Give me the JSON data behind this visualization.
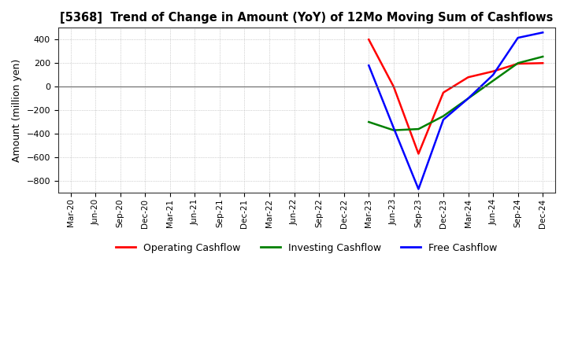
{
  "title": "[5368]  Trend of Change in Amount (YoY) of 12Mo Moving Sum of Cashflows",
  "ylabel": "Amount (million yen)",
  "ylim": [
    -900,
    500
  ],
  "yticks": [
    400,
    200,
    0,
    -200,
    -400,
    -600,
    -800
  ],
  "background_color": "#ffffff",
  "grid_color": "#aaaaaa",
  "x_labels": [
    "Mar-20",
    "Jun-20",
    "Sep-20",
    "Dec-20",
    "Mar-21",
    "Jun-21",
    "Sep-21",
    "Dec-21",
    "Mar-22",
    "Jun-22",
    "Sep-22",
    "Dec-22",
    "Mar-23",
    "Jun-23",
    "Sep-23",
    "Dec-23",
    "Mar-24",
    "Jun-24",
    "Sep-24",
    "Dec-24"
  ],
  "operating": [
    null,
    null,
    null,
    null,
    null,
    null,
    null,
    null,
    null,
    null,
    null,
    null,
    400,
    0,
    -570,
    -50,
    80,
    130,
    195,
    200
  ],
  "investing": [
    null,
    null,
    null,
    null,
    null,
    null,
    null,
    null,
    null,
    null,
    null,
    null,
    -300,
    -370,
    -360,
    -250,
    -100,
    50,
    200,
    255
  ],
  "free": [
    null,
    null,
    null,
    null,
    null,
    null,
    null,
    null,
    null,
    null,
    null,
    null,
    180,
    -350,
    -870,
    -280,
    -100,
    100,
    415,
    460
  ],
  "line_colors": {
    "operating": "#ff0000",
    "investing": "#008000",
    "free": "#0000ff"
  },
  "line_width": 1.8,
  "legend_labels": [
    "Operating Cashflow",
    "Investing Cashflow",
    "Free Cashflow"
  ]
}
